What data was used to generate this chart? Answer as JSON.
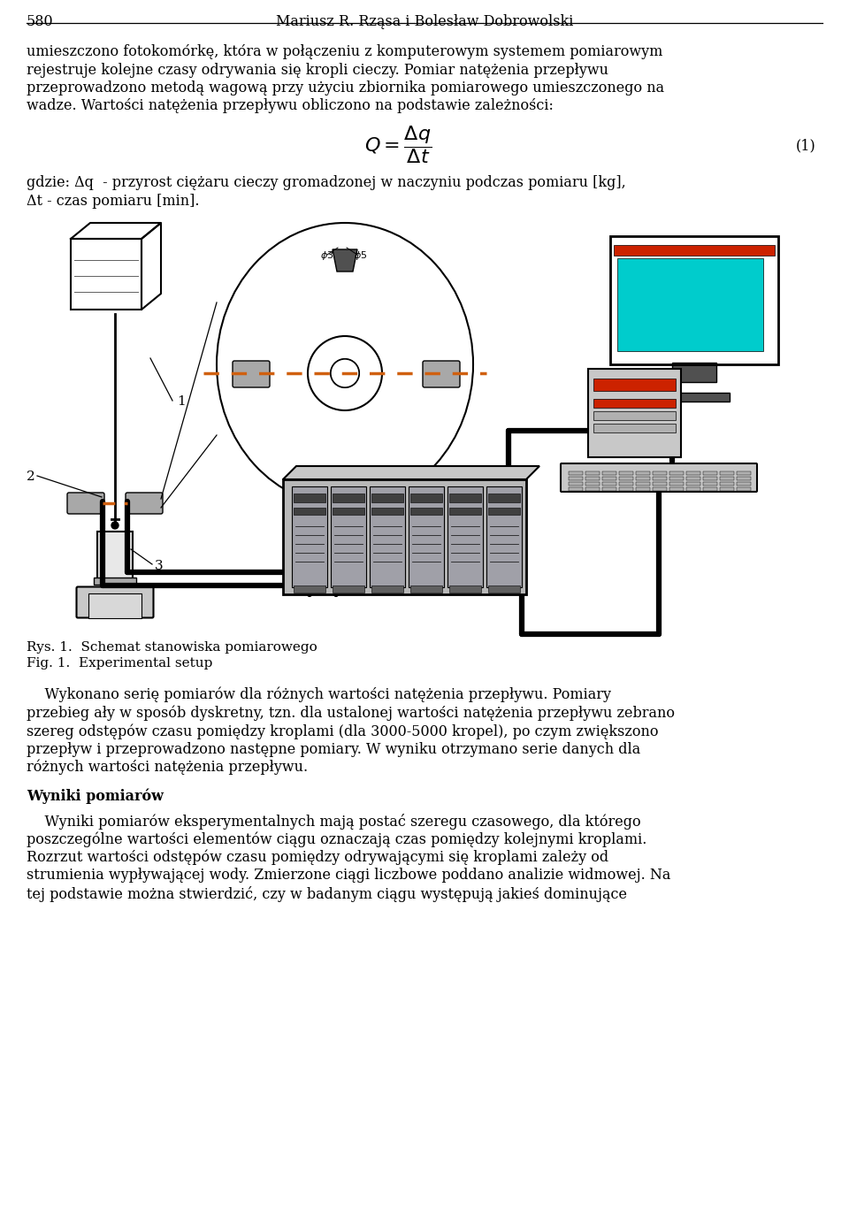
{
  "page_num": "580",
  "header_author": "Mariusz R. Rząsa i Bolesław Dobrowolski",
  "line1": "umieszczono fotokomórkę, która w połączeniu z komputerowym systemem pomiarowym",
  "line2": "rejestruje kolejne czasy odrywania się kropli cieczy. Pomiar natężenia przepływu",
  "line3": "przeprowadzono metodą wagową przy użyciu zbiornika pomiarowego umieszczonego na",
  "line4": "wadze. Wartości natężenia przepływu obliczono na podstawie zależności:",
  "gdzie1": "gdzie: Δq  - przyrost ciężaru cieczy gromadzonej w naczyniu podczas pomiaru [kg],",
  "gdzie2": "Δt - czas pomiaru [min].",
  "caption_pl": "Rys. 1.  Schemat stanowiska pomiarowego",
  "caption_en": "Fig. 1.  Experimental setup",
  "p2l1": "    Wykonano serię pomiarów dla różnych wartości natężenia przepływu. Pomiary",
  "p2l2": "przebieg ały w sposób dyskretny, tzn. dla ustalonej wartości natężenia przepływu zebrano",
  "p2l3": "szereg odstępów czasu pomiędzy kroplami (dla 3000-5000 kropel), po czym zwiększono",
  "p2l4": "przepływ i przeprowadzono następne pomiary. W wyniku otrzymano serie danych dla",
  "p2l5": "różnych wartości natężenia przepływu.",
  "section": "Wyniki pomiarów",
  "p3l1": "    Wyniki pomiarów eksperymentalnych mają postać szeregu czasowego, dla którego",
  "p3l2": "poszczególne wartości elementów ciągu oznaczają czas pomiędzy kolejnymi kroplami.",
  "p3l3": "Rozrzut wartości odstępów czasu pomiędzy odrywającymi się kroplami zależy od",
  "p3l4": "strumienia wypływającej wody. Zmierzone ciągi liczbowe poddano analizie widmowej. Na",
  "p3l5": "tej podstawie można stwierdzić, czy w badanym ciągu występują jakieś dominujące",
  "bg": "#ffffff",
  "black": "#000000",
  "gray_cyl": "#a8a8a8",
  "gray_light": "#c8c8c8",
  "gray_med": "#b0b0b0",
  "cyan": "#00cccc",
  "red": "#cc2200",
  "orange": "#d06010"
}
